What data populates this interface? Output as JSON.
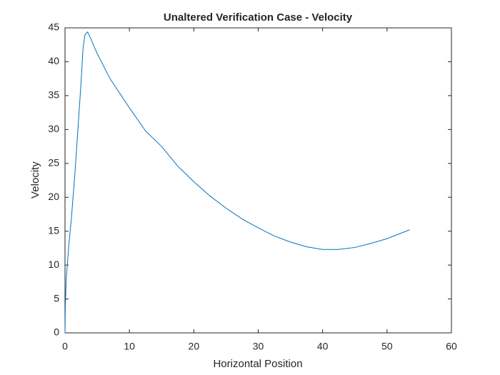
{
  "chart_data": {
    "type": "line",
    "title": "Unaltered Verification Case - Velocity",
    "xlabel": "Horizontal Position",
    "ylabel": "Velocity",
    "x": [
      0,
      0.05,
      0.2,
      0.6,
      1,
      1.5,
      2,
      2.5,
      2.8,
      3.1,
      3.5,
      4,
      5,
      7,
      10,
      12.5,
      15,
      17.5,
      20,
      22.5,
      25,
      27.5,
      30,
      32.5,
      35,
      37.5,
      40,
      42.5,
      45,
      47.5,
      50,
      53.5
    ],
    "series": [
      {
        "name": "Velocity",
        "color": "#0072bd",
        "values": [
          0,
          4,
          8,
          13,
          17,
          23,
          30,
          37,
          42,
          44,
          44.4,
          43.4,
          41.2,
          37.5,
          33.2,
          29.8,
          27.5,
          24.6,
          22.3,
          20.2,
          18.4,
          16.8,
          15.5,
          14.3,
          13.4,
          12.7,
          12.3,
          12.3,
          12.6,
          13.2,
          13.9,
          15.2
        ]
      }
    ],
    "xlim": [
      0,
      60
    ],
    "xticks": [
      0,
      10,
      20,
      30,
      40,
      50,
      60
    ],
    "ylim": [
      0,
      45
    ],
    "yticks": [
      0,
      5,
      10,
      15,
      20,
      25,
      30,
      35,
      40,
      45
    ]
  }
}
